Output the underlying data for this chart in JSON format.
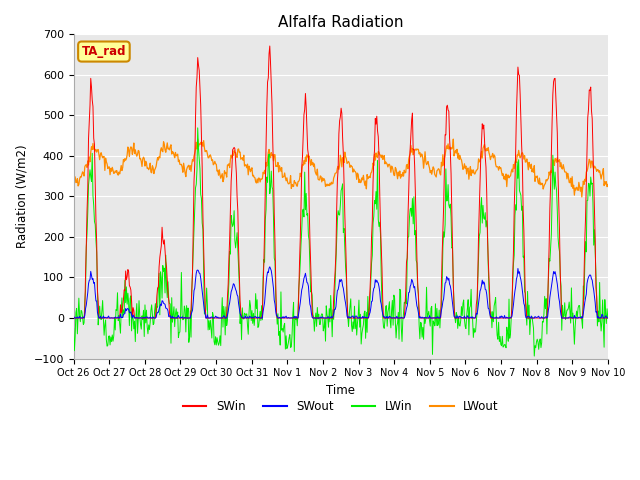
{
  "title": "Alfalfa Radiation",
  "ylabel": "Radiation (W/m2)",
  "xlabel": "Time",
  "annotation": "TA_rad",
  "ylim": [
    -100,
    700
  ],
  "yticks": [
    -100,
    0,
    100,
    200,
    300,
    400,
    500,
    600,
    700
  ],
  "colors": {
    "SWin": "#ff0000",
    "SWout": "#0000ff",
    "LWin": "#00ee00",
    "LWout": "#ff8c00"
  },
  "legend_labels": [
    "SWin",
    "SWout",
    "LWin",
    "LWout"
  ],
  "xticklabels": [
    "Oct 26",
    "Oct 27",
    "Oct 28",
    "Oct 29",
    "Oct 30",
    "Oct 31",
    "Nov 1",
    "Nov 2",
    "Nov 3",
    "Nov 4",
    "Nov 5",
    "Nov 6",
    "Nov 7",
    "Nov 8",
    "Nov 9",
    "Nov 10"
  ],
  "bg_color": "#e8e8e8",
  "annotation_bg": "#ffff99",
  "annotation_border": "#cc8800",
  "annotation_text_color": "#cc0000",
  "n_days": 15,
  "n_per_day": 48
}
